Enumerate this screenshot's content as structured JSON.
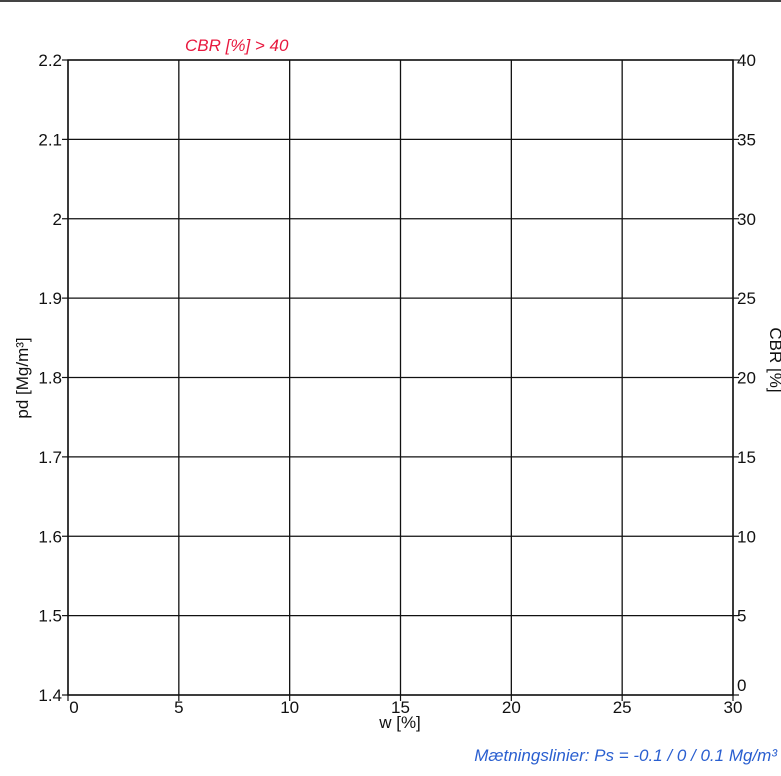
{
  "colors": {
    "accent_red": "#e8193f",
    "accent_blue": "#2a5fd0",
    "grid": "#111111"
  },
  "chart_data": {
    "type": "scatter",
    "annotation_top": "CBR [%] > 40",
    "annotation_bottom": "Mætningslinier: Ps = -0.1 / 0 / 0.1 Mg/m³",
    "xlabel": "w [%]",
    "ylabel": "pd [Mg/m³]",
    "y2label": "CBR [%]",
    "xlim": [
      0,
      30
    ],
    "ylim": [
      1.4,
      2.2
    ],
    "y2lim": [
      0,
      40
    ],
    "x_ticks": [
      0,
      5,
      10,
      15,
      20,
      25,
      30
    ],
    "x_tick_labels": [
      "0",
      "5",
      "10",
      "15",
      "20",
      "25",
      "30"
    ],
    "y_ticks": [
      1.4,
      1.5,
      1.6,
      1.7,
      1.8,
      1.9,
      2.0,
      2.1,
      2.2
    ],
    "y_tick_labels": [
      "1.4",
      "1.5",
      "1.6",
      "1.7",
      "1.8",
      "1.9",
      "2",
      "2.1",
      "2.2"
    ],
    "y2_ticks": [
      0,
      5,
      10,
      15,
      20,
      25,
      30,
      35,
      40
    ],
    "y2_tick_labels": [
      "0",
      "5",
      "10",
      "15",
      "20",
      "25",
      "30",
      "35",
      "40"
    ],
    "grid": true,
    "series": []
  }
}
